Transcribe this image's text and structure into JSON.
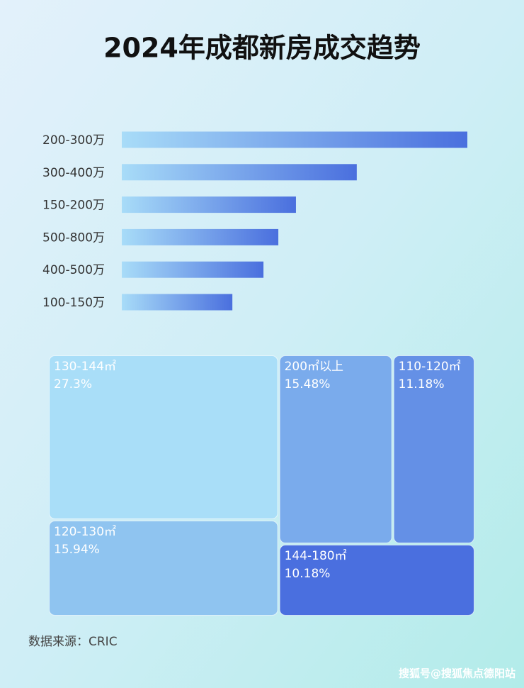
{
  "chart_data": [
    {
      "type": "bar",
      "title": "2024年成都新房成交趋势",
      "categories": [
        "200-300万",
        "300-400万",
        "150-200万",
        "500-800万",
        "400-500万",
        "100-150万"
      ],
      "values": [
        100,
        68,
        50.4,
        45.3,
        41,
        32
      ],
      "xlim": [
        0,
        100
      ],
      "colors": [
        "#a8dcf8",
        "#4a6fde"
      ]
    },
    {
      "type": "treemap",
      "categories": [
        "130-144㎡",
        "120-130㎡",
        "200㎡以上",
        "110-120㎡",
        "144-180㎡"
      ],
      "values": [
        27.3,
        15.94,
        15.48,
        11.18,
        10.18
      ],
      "value_labels": [
        "27.3%",
        "15.94%",
        "15.48%",
        "11.18%",
        "10.18%"
      ],
      "colors": [
        "#a9def8",
        "#8fc4f0",
        "#7aabec",
        "#6490e6",
        "#4a6fdf"
      ]
    }
  ],
  "source": "数据来源：CRIC",
  "watermark": "搜狐号@搜狐焦点德阳站"
}
